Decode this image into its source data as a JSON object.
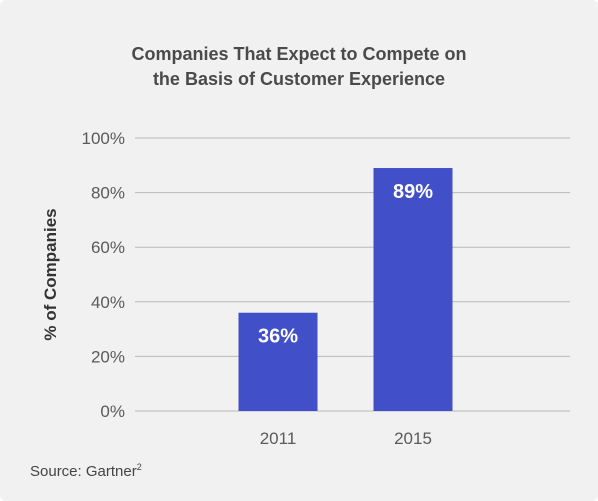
{
  "chart_data": {
    "type": "bar",
    "title_line1": "Companies That Expect to Compete on",
    "title_line2": "the Basis of Customer Experience",
    "xlabel": "",
    "ylabel": "% of Companies",
    "categories": [
      "2011",
      "2015"
    ],
    "values": [
      36,
      89
    ],
    "value_labels": [
      "36%",
      "89%"
    ],
    "ylim": [
      0,
      100
    ],
    "yticks": [
      0,
      20,
      40,
      60,
      80,
      100
    ],
    "ytick_labels": [
      "0%",
      "20%",
      "40%",
      "60%",
      "80%",
      "100%"
    ],
    "grid": true,
    "legend": "none",
    "bar_color": "#4150c8"
  },
  "source": {
    "text": "Source: Gartner",
    "footnote": "2"
  }
}
